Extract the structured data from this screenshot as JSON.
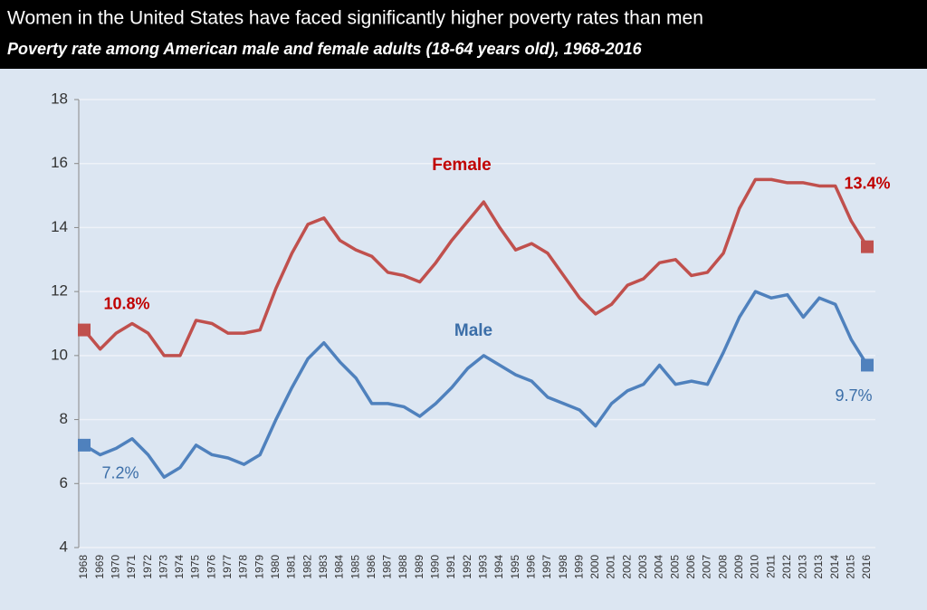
{
  "chart_data": {
    "type": "line",
    "title": "Women in the United States have faced significantly higher poverty rates than men",
    "subtitle": "Poverty rate among American male and female adults (18-64 years old), 1968-2016",
    "categories": [
      "1968",
      "1969",
      "1970",
      "1971",
      "1972",
      "1973",
      "1974",
      "1975",
      "1976",
      "1977",
      "1978",
      "1979",
      "1980",
      "1981",
      "1982",
      "1983",
      "1984",
      "1985",
      "1986",
      "1987",
      "1988",
      "1989",
      "1990",
      "1991",
      "1992",
      "1993",
      "1994",
      "1995",
      "1996",
      "1997",
      "1998",
      "1999",
      "2000",
      "2001",
      "2002",
      "2003",
      "2004",
      "2005",
      "2006",
      "2007",
      "2008",
      "2009",
      "2010",
      "2011",
      "2012",
      "2013",
      "2013",
      "2014",
      "2015",
      "2016"
    ],
    "series": [
      {
        "name": "Female",
        "color": "#c0504d",
        "label_color": "#c00000",
        "values": [
          10.8,
          10.2,
          10.7,
          11.0,
          10.7,
          10.0,
          10.0,
          11.1,
          11.0,
          10.7,
          10.7,
          10.8,
          12.1,
          13.2,
          14.1,
          14.3,
          13.6,
          13.3,
          13.1,
          12.6,
          12.5,
          12.3,
          12.9,
          13.6,
          14.2,
          14.8,
          14.0,
          13.3,
          13.5,
          13.2,
          12.5,
          11.8,
          11.3,
          11.6,
          12.2,
          12.4,
          12.9,
          13.0,
          12.5,
          12.6,
          13.2,
          14.6,
          15.5,
          15.5,
          15.4,
          15.4,
          15.3,
          15.3,
          14.2,
          13.4
        ],
        "value_labels": [
          "10.8%",
          null,
          null,
          null,
          null,
          null,
          null,
          null,
          null,
          null,
          null,
          null,
          null,
          null,
          null,
          null,
          null,
          null,
          null,
          null,
          null,
          null,
          null,
          null,
          null,
          null,
          null,
          null,
          null,
          null,
          null,
          null,
          null,
          null,
          null,
          null,
          null,
          null,
          null,
          null,
          null,
          null,
          null,
          null,
          null,
          null,
          null,
          null,
          null,
          "13.4%"
        ]
      },
      {
        "name": "Male",
        "color": "#4f81bd",
        "label_color": "#3b6ea8",
        "values": [
          7.2,
          6.9,
          7.1,
          7.4,
          6.9,
          6.2,
          6.5,
          7.2,
          6.9,
          6.8,
          6.6,
          6.9,
          8.0,
          9.0,
          9.9,
          10.4,
          9.8,
          9.3,
          8.5,
          8.5,
          8.4,
          8.1,
          8.5,
          9.0,
          9.6,
          10.0,
          9.7,
          9.4,
          9.2,
          8.7,
          8.5,
          8.3,
          7.8,
          8.5,
          8.9,
          9.1,
          9.7,
          9.1,
          9.2,
          9.1,
          10.1,
          11.2,
          12.0,
          11.8,
          11.9,
          11.2,
          11.8,
          11.6,
          10.5,
          9.7
        ],
        "value_labels": [
          "7.2%",
          null,
          null,
          null,
          null,
          null,
          null,
          null,
          null,
          null,
          null,
          null,
          null,
          null,
          null,
          null,
          null,
          null,
          null,
          null,
          null,
          null,
          null,
          null,
          null,
          null,
          null,
          null,
          null,
          null,
          null,
          null,
          null,
          null,
          null,
          null,
          null,
          null,
          null,
          null,
          null,
          null,
          null,
          null,
          null,
          null,
          null,
          null,
          null,
          "9.7%"
        ]
      }
    ],
    "ylim": [
      4,
      18
    ],
    "yticks": [
      4,
      6,
      8,
      10,
      12,
      14,
      16,
      18
    ],
    "grid": true
  }
}
